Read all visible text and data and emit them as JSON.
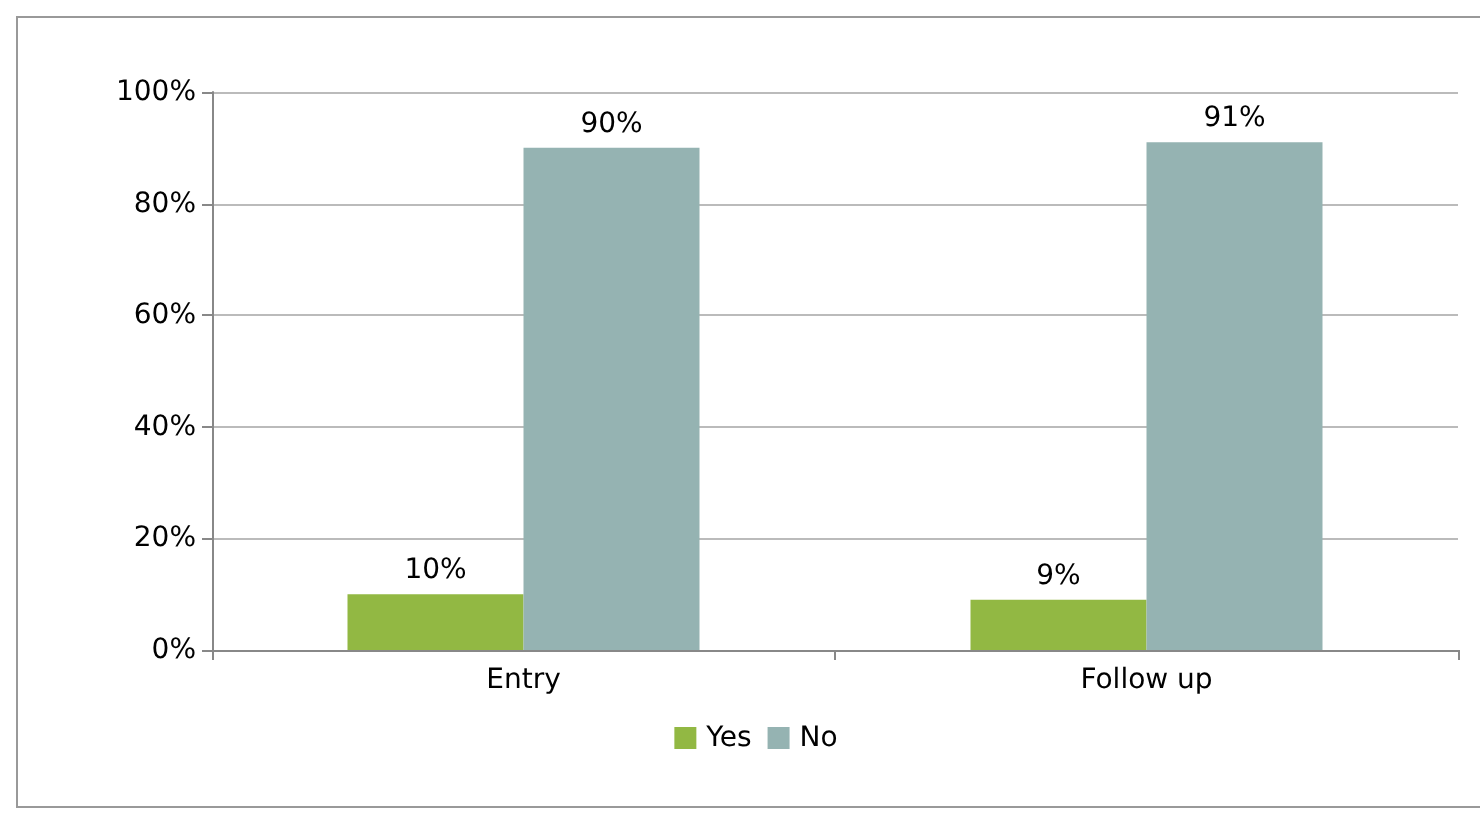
{
  "chart_data": {
    "type": "bar",
    "categories": [
      "Entry",
      "Follow up"
    ],
    "series": [
      {
        "name": "Yes",
        "color": "#92b843",
        "values": [
          10,
          9
        ],
        "value_labels": [
          "10%",
          "9%"
        ]
      },
      {
        "name": "No",
        "color": "#95b3b2",
        "values": [
          90,
          91
        ],
        "value_labels": [
          "90%",
          "91%"
        ]
      }
    ],
    "ylim": [
      0,
      100
    ],
    "yticks": [
      {
        "value": 0,
        "label": "0%"
      },
      {
        "value": 20,
        "label": "20%"
      },
      {
        "value": 40,
        "label": "40%"
      },
      {
        "value": 60,
        "label": "60%"
      },
      {
        "value": 80,
        "label": "80%"
      },
      {
        "value": 100,
        "label": "100%"
      }
    ],
    "grid": "y",
    "legend": "bottom"
  }
}
